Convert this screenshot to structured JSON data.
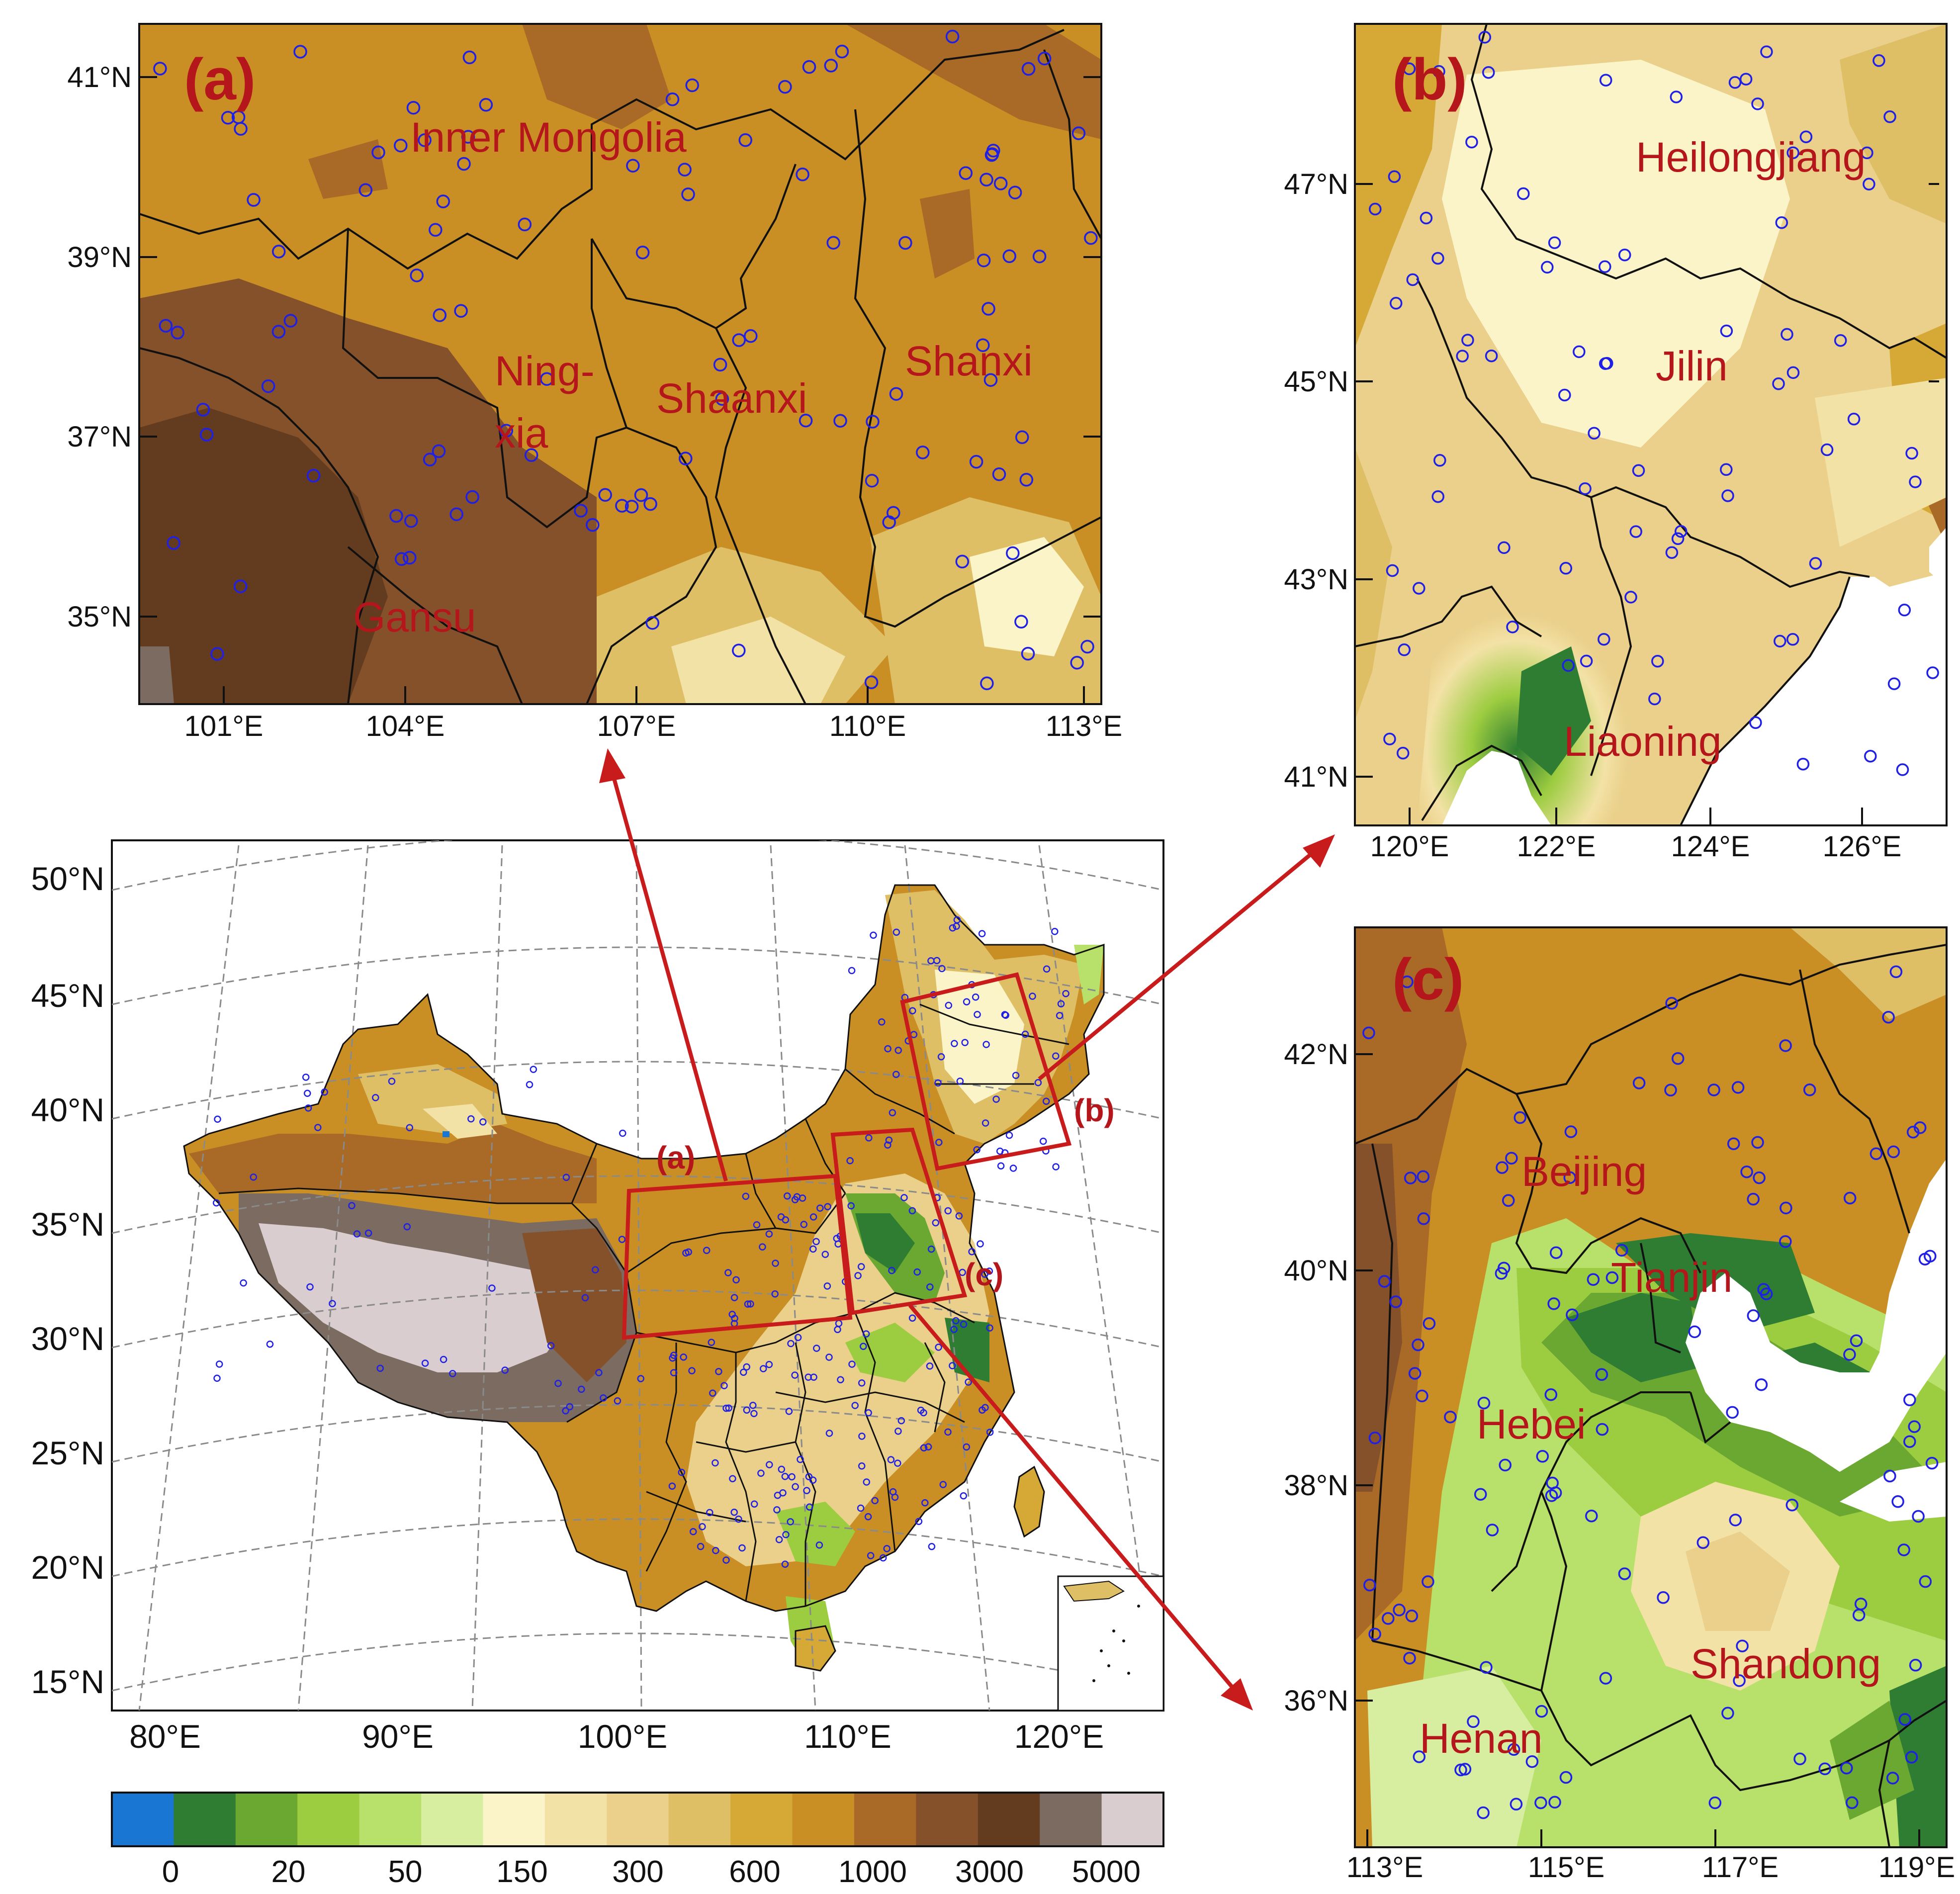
{
  "colors": {
    "station_marker": "#1f1fe6",
    "highlight_box": "#c81b1b",
    "boundary": "#111111",
    "colorbar": [
      "#1976d2",
      "#2e7d32",
      "#6aa832",
      "#9ccc40",
      "#b7e16a",
      "#d7eea0",
      "#fbf4c8",
      "#f3e2a6",
      "#ead08a",
      "#dfbf66",
      "#d6a836",
      "#c98f24",
      "#a86a26",
      "#84512a",
      "#633c1f",
      "#7b6b60",
      "#d9cdd0"
    ]
  },
  "main_map": {
    "lat_labels": [
      "50°N",
      "45°N",
      "40°N",
      "35°N",
      "30°N",
      "25°N",
      "20°N",
      "15°N"
    ],
    "lon_labels": [
      "80°E",
      "90°E",
      "100°E",
      "110°E",
      "120°E"
    ],
    "boxes": [
      {
        "label": "(a)",
        "target": "panel_a"
      },
      {
        "label": "(b)",
        "target": "panel_b"
      },
      {
        "label": "(c)",
        "target": "panel_c"
      }
    ]
  },
  "colorbar": {
    "tick_labels": [
      "0",
      "20",
      "50",
      "150",
      "300",
      "600",
      "1000",
      "3000",
      "5000"
    ]
  },
  "panel_a": {
    "letter": "(a)",
    "lat_labels": [
      "41°N",
      "39°N",
      "37°N",
      "35°N"
    ],
    "lon_labels": [
      "101°E",
      "104°E",
      "107°E",
      "110°E",
      "113°E"
    ],
    "regions": [
      "Inner Mongolia",
      "Ning-",
      "xia",
      "Shaanxi",
      "Shanxi",
      "Gansu"
    ]
  },
  "panel_b": {
    "letter": "(b)",
    "lat_labels": [
      "47°N",
      "45°N",
      "43°N",
      "41°N"
    ],
    "lon_labels": [
      "120°E",
      "122°E",
      "124°E",
      "126°E"
    ],
    "regions": [
      "Heilongjiang",
      "Jilin",
      "Liaoning"
    ]
  },
  "panel_c": {
    "letter": "(c)",
    "lat_labels": [
      "42°N",
      "40°N",
      "38°N",
      "36°N"
    ],
    "lon_labels": [
      "113°E",
      "115°E",
      "117°E",
      "119°E"
    ],
    "regions": [
      "Beijing",
      "Tianjin",
      "Hebei",
      "Shandong",
      "Henan"
    ]
  }
}
